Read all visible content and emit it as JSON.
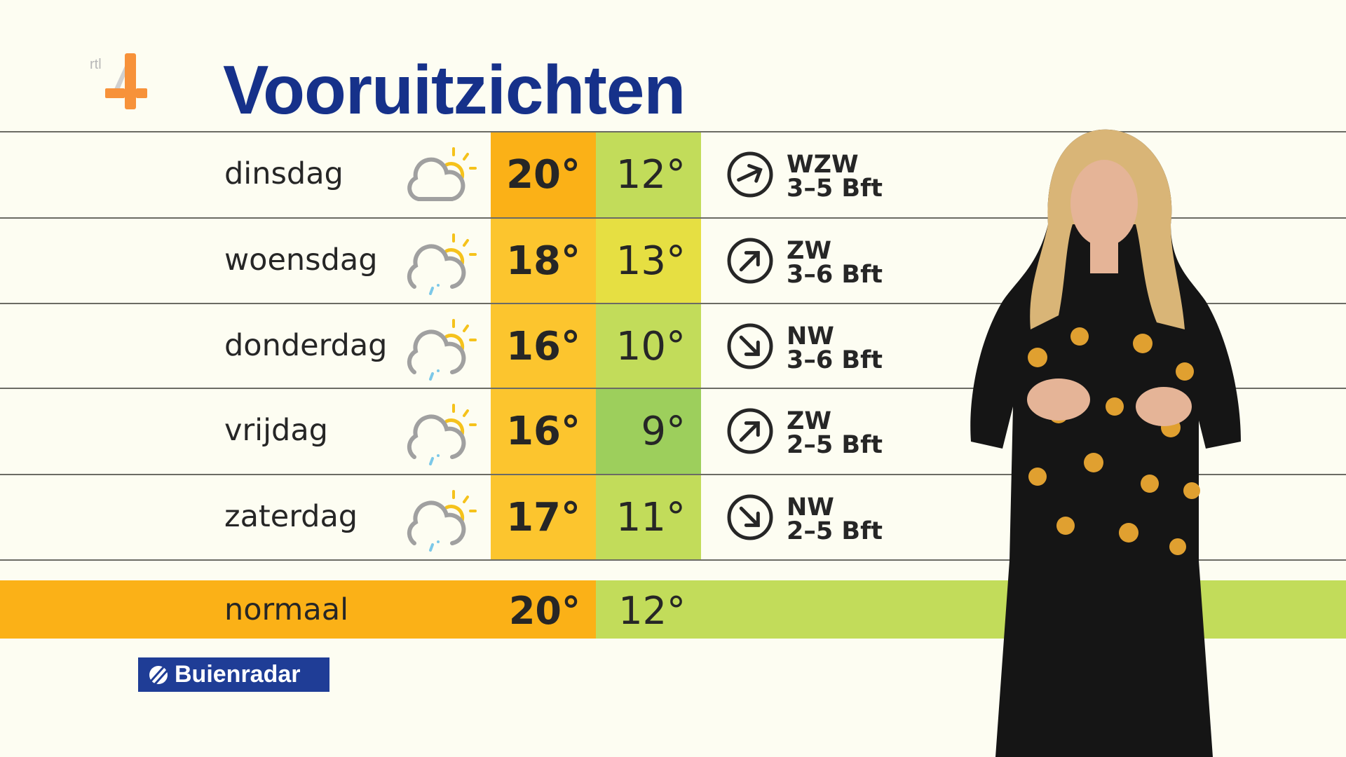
{
  "brand": {
    "channel_logo": "rtl 4",
    "partner_logo": "Buienradar",
    "title_color": "#16318a"
  },
  "title": "Vooruitzichten",
  "forecast": [
    {
      "day": "dinsdag",
      "icon": "partly-cloudy",
      "high": "20°",
      "low": "12°",
      "high_color": "#fbb117",
      "low_color": "#c2dc5a",
      "wind_dir": "WZW",
      "wind_force": "3–5 Bft"
    },
    {
      "day": "woensdag",
      "icon": "partly-cloudy-rain",
      "high": "18°",
      "low": "13°",
      "high_color": "#fcc52e",
      "low_color": "#e6df42",
      "wind_dir": "ZW",
      "wind_force": "3–6 Bft"
    },
    {
      "day": "donderdag",
      "icon": "partly-cloudy-rain",
      "high": "16°",
      "low": "10°",
      "high_color": "#fcc52e",
      "low_color": "#c2dc5a",
      "wind_dir": "NW",
      "wind_force": "3–6 Bft"
    },
    {
      "day": "vrijdag",
      "icon": "partly-cloudy-rain",
      "high": "16°",
      "low": "9°",
      "high_color": "#fcc52e",
      "low_color": "#9dcf5c",
      "wind_dir": "ZW",
      "wind_force": "2–5 Bft"
    },
    {
      "day": "zaterdag",
      "icon": "partly-cloudy-rain",
      "high": "17°",
      "low": "11°",
      "high_color": "#fcc52e",
      "low_color": "#c2dc5a",
      "wind_dir": "NW",
      "wind_force": "2–5 Bft"
    }
  ],
  "normal": {
    "label": "normaal",
    "high": "20°",
    "low": "12°",
    "high_color": "#fbb117",
    "low_color": "#c2dc5a"
  }
}
